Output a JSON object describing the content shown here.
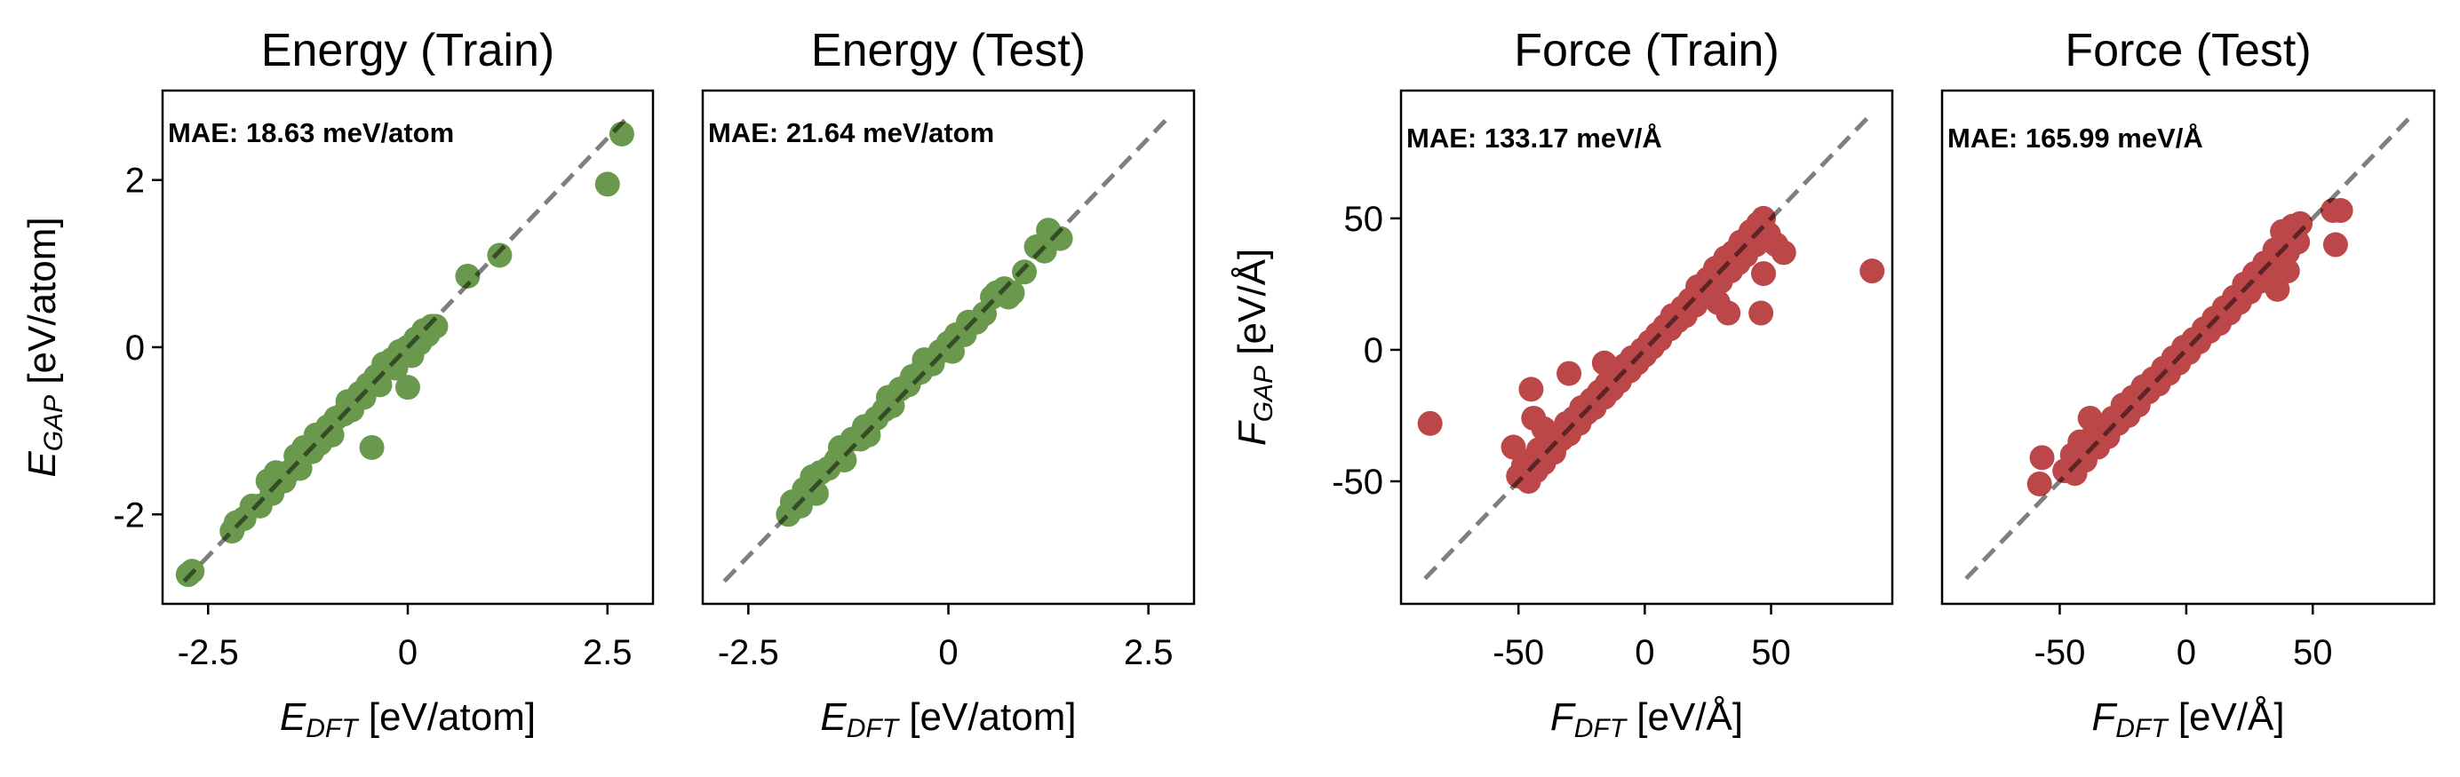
{
  "chart_data": [
    {
      "type": "scatter",
      "title": "Energy (Train)",
      "xlabel": {
        "symbol": "E",
        "sub": "DFT",
        "unit": " [eV/atom]"
      },
      "ylabel": {
        "symbol": "E",
        "sub": "GAP",
        "unit": " [eV/atom]"
      },
      "annotation": "MAE: 18.63 meV/atom",
      "xlim": [
        -3.07,
        3.07
      ],
      "ylim": [
        -3.07,
        3.07
      ],
      "xticks": [
        -2.5,
        0.0,
        2.5
      ],
      "xtick_labels": [
        "-2.5",
        "0.0",
        "2.5"
      ],
      "yticks": [
        -2,
        0,
        2
      ],
      "ytick_labels": [
        "-2",
        "0",
        "2"
      ],
      "show_yticks": true,
      "diagonal": [
        -2.8,
        2.75
      ],
      "color": "#6A994E",
      "grid": false,
      "points": [
        [
          -2.75,
          -2.72
        ],
        [
          -2.7,
          -2.68
        ],
        [
          -2.2,
          -2.2
        ],
        [
          -2.15,
          -2.1
        ],
        [
          -2.05,
          -2.05
        ],
        [
          -1.95,
          -1.9
        ],
        [
          -1.85,
          -1.9
        ],
        [
          -1.75,
          -1.6
        ],
        [
          -1.7,
          -1.75
        ],
        [
          -1.65,
          -1.5
        ],
        [
          -1.55,
          -1.6
        ],
        [
          -1.5,
          -1.5
        ],
        [
          -1.4,
          -1.3
        ],
        [
          -1.35,
          -1.45
        ],
        [
          -1.3,
          -1.2
        ],
        [
          -1.2,
          -1.25
        ],
        [
          -1.15,
          -1.05
        ],
        [
          -1.1,
          -1.15
        ],
        [
          -1.0,
          -0.95
        ],
        [
          -0.95,
          -1.05
        ],
        [
          -0.9,
          -0.85
        ],
        [
          -0.8,
          -0.8
        ],
        [
          -0.75,
          -0.65
        ],
        [
          -0.7,
          -0.75
        ],
        [
          -0.6,
          -0.55
        ],
        [
          -0.55,
          -0.6
        ],
        [
          -0.5,
          -0.45
        ],
        [
          -0.4,
          -0.35
        ],
        [
          -0.35,
          -0.45
        ],
        [
          -0.3,
          -0.2
        ],
        [
          -0.2,
          -0.15
        ],
        [
          -0.15,
          -0.25
        ],
        [
          -0.1,
          -0.05
        ],
        [
          0.0,
          0.0
        ],
        [
          0.05,
          -0.1
        ],
        [
          0.1,
          0.1
        ],
        [
          0.15,
          0.05
        ],
        [
          0.2,
          0.2
        ],
        [
          0.25,
          0.15
        ],
        [
          0.3,
          0.25
        ],
        [
          0.35,
          0.25
        ],
        [
          -0.45,
          -1.2
        ],
        [
          0.0,
          -0.48
        ],
        [
          0.75,
          0.85
        ],
        [
          1.15,
          1.1
        ],
        [
          2.5,
          1.95
        ],
        [
          2.68,
          2.55
        ]
      ]
    },
    {
      "type": "scatter",
      "title": "Energy (Test)",
      "xlabel": {
        "symbol": "E",
        "sub": "DFT",
        "unit": " [eV/atom]"
      },
      "annotation": "MAE: 21.64 meV/atom",
      "xlim": [
        -3.07,
        3.07
      ],
      "ylim": [
        -3.07,
        3.07
      ],
      "xticks": [
        -2.5,
        0.0,
        2.5
      ],
      "xtick_labels": [
        "-2.5",
        "0.0",
        "2.5"
      ],
      "show_yticks": false,
      "diagonal": [
        -2.8,
        2.75
      ],
      "color": "#6A994E",
      "grid": false,
      "points": [
        [
          -2.0,
          -2.0
        ],
        [
          -1.95,
          -1.85
        ],
        [
          -1.85,
          -1.9
        ],
        [
          -1.8,
          -1.7
        ],
        [
          -1.7,
          -1.55
        ],
        [
          -1.65,
          -1.75
        ],
        [
          -1.6,
          -1.5
        ],
        [
          -1.5,
          -1.45
        ],
        [
          -1.4,
          -1.35
        ],
        [
          -1.35,
          -1.2
        ],
        [
          -1.3,
          -1.35
        ],
        [
          -1.2,
          -1.1
        ],
        [
          -1.1,
          -1.1
        ],
        [
          -1.05,
          -0.95
        ],
        [
          -1.0,
          -1.05
        ],
        [
          -0.9,
          -0.85
        ],
        [
          -0.8,
          -0.75
        ],
        [
          -0.75,
          -0.6
        ],
        [
          -0.7,
          -0.7
        ],
        [
          -0.6,
          -0.5
        ],
        [
          -0.5,
          -0.45
        ],
        [
          -0.45,
          -0.35
        ],
        [
          -0.35,
          -0.3
        ],
        [
          -0.3,
          -0.15
        ],
        [
          -0.2,
          -0.2
        ],
        [
          -0.1,
          -0.05
        ],
        [
          0.0,
          0.05
        ],
        [
          0.05,
          -0.05
        ],
        [
          0.1,
          0.15
        ],
        [
          0.2,
          0.15
        ],
        [
          0.25,
          0.3
        ],
        [
          0.35,
          0.3
        ],
        [
          0.45,
          0.4
        ],
        [
          0.55,
          0.6
        ],
        [
          0.6,
          0.65
        ],
        [
          0.7,
          0.7
        ],
        [
          0.75,
          0.6
        ],
        [
          0.8,
          0.65
        ],
        [
          0.95,
          0.9
        ],
        [
          1.1,
          1.2
        ],
        [
          1.25,
          1.4
        ],
        [
          1.4,
          1.3
        ],
        [
          1.2,
          1.15
        ]
      ]
    },
    {
      "type": "scatter",
      "title": "Force (Train)",
      "xlabel": {
        "symbol": "F",
        "sub": "DFT",
        "unit": " [eV/Å]"
      },
      "ylabel": {
        "symbol": "F",
        "sub": "GAP",
        "unit": " [eV/Å]"
      },
      "annotation": "MAE: 133.17 meV/Å",
      "xlim": [
        -96.5,
        98
      ],
      "ylim": [
        -96.6,
        98.6
      ],
      "xticks": [
        -50,
        0,
        50
      ],
      "xtick_labels": [
        "-50",
        "0",
        "50"
      ],
      "yticks": [
        -50,
        0,
        50
      ],
      "ytick_labels": [
        "-50",
        "0",
        "50"
      ],
      "show_yticks": true,
      "diagonal": [
        -87,
        88
      ],
      "color": "#BC4749",
      "grid": false,
      "points": [
        [
          -50,
          -48
        ],
        [
          -48,
          -44
        ],
        [
          -46,
          -50
        ],
        [
          -45,
          -42
        ],
        [
          -43,
          -46
        ],
        [
          -42,
          -38
        ],
        [
          -40,
          -43
        ],
        [
          -38,
          -35
        ],
        [
          -36,
          -39
        ],
        [
          -35,
          -32
        ],
        [
          -33,
          -34
        ],
        [
          -31,
          -28
        ],
        [
          -30,
          -32
        ],
        [
          -28,
          -26
        ],
        [
          -26,
          -28
        ],
        [
          -25,
          -22
        ],
        [
          -23,
          -24
        ],
        [
          -21,
          -19
        ],
        [
          -20,
          -22
        ],
        [
          -18,
          -16
        ],
        [
          -16,
          -18
        ],
        [
          -15,
          -13
        ],
        [
          -13,
          -15
        ],
        [
          -11,
          -9
        ],
        [
          -10,
          -12
        ],
        [
          -8,
          -6
        ],
        [
          -6,
          -8
        ],
        [
          -5,
          -3
        ],
        [
          -3,
          -5
        ],
        [
          -1,
          0
        ],
        [
          0,
          -2
        ],
        [
          2,
          3
        ],
        [
          3,
          1
        ],
        [
          5,
          6
        ],
        [
          6,
          4
        ],
        [
          8,
          9
        ],
        [
          10,
          8
        ],
        [
          11,
          13
        ],
        [
          13,
          11
        ],
        [
          15,
          16
        ],
        [
          16,
          13
        ],
        [
          18,
          19
        ],
        [
          20,
          17
        ],
        [
          21,
          24
        ],
        [
          23,
          20
        ],
        [
          25,
          27
        ],
        [
          27,
          23
        ],
        [
          28,
          31
        ],
        [
          30,
          26
        ],
        [
          32,
          35
        ],
        [
          34,
          30
        ],
        [
          35,
          37
        ],
        [
          37,
          33
        ],
        [
          38,
          41
        ],
        [
          40,
          36
        ],
        [
          42,
          45
        ],
        [
          44,
          40
        ],
        [
          45,
          48
        ],
        [
          47,
          50
        ],
        [
          49,
          44
        ],
        [
          52,
          40
        ],
        [
          55,
          37
        ],
        [
          29,
          18
        ],
        [
          33,
          14
        ],
        [
          46,
          14
        ],
        [
          47,
          29
        ],
        [
          -52,
          -37
        ],
        [
          -45,
          -15
        ],
        [
          -44,
          -26
        ],
        [
          -30,
          -9
        ],
        [
          -16,
          -5
        ],
        [
          -40,
          -30
        ],
        [
          -85,
          -28
        ],
        [
          90,
          30
        ]
      ]
    },
    {
      "type": "scatter",
      "title": "Force (Test)",
      "xlabel": {
        "symbol": "F",
        "sub": "DFT",
        "unit": " [eV/Å]"
      },
      "annotation": "MAE: 165.99 meV/Å",
      "xlim": [
        -96.5,
        98
      ],
      "ylim": [
        -96.6,
        98.6
      ],
      "xticks": [
        -50,
        0,
        50
      ],
      "xtick_labels": [
        "-50",
        "0",
        "50"
      ],
      "show_yticks": false,
      "diagonal": [
        -87,
        88
      ],
      "color": "#BC4749",
      "grid": false,
      "points": [
        [
          -58,
          -51
        ],
        [
          -57,
          -41
        ],
        [
          -48,
          -46
        ],
        [
          -45,
          -40
        ],
        [
          -44,
          -47
        ],
        [
          -42,
          -35
        ],
        [
          -40,
          -42
        ],
        [
          -38,
          -26
        ],
        [
          -37,
          -33
        ],
        [
          -35,
          -37
        ],
        [
          -33,
          -30
        ],
        [
          -31,
          -33
        ],
        [
          -29,
          -26
        ],
        [
          -27,
          -28
        ],
        [
          -25,
          -21
        ],
        [
          -23,
          -25
        ],
        [
          -21,
          -18
        ],
        [
          -19,
          -21
        ],
        [
          -17,
          -14
        ],
        [
          -15,
          -16
        ],
        [
          -13,
          -11
        ],
        [
          -11,
          -13
        ],
        [
          -9,
          -7
        ],
        [
          -7,
          -9
        ],
        [
          -5,
          -3
        ],
        [
          -3,
          -5
        ],
        [
          -1,
          1
        ],
        [
          1,
          -1
        ],
        [
          3,
          4
        ],
        [
          5,
          3
        ],
        [
          7,
          8
        ],
        [
          9,
          7
        ],
        [
          11,
          12
        ],
        [
          13,
          10
        ],
        [
          15,
          16
        ],
        [
          17,
          14
        ],
        [
          19,
          20
        ],
        [
          21,
          18
        ],
        [
          23,
          25
        ],
        [
          25,
          22
        ],
        [
          27,
          29
        ],
        [
          29,
          26
        ],
        [
          31,
          33
        ],
        [
          33,
          30
        ],
        [
          35,
          38
        ],
        [
          37,
          33
        ],
        [
          38,
          45
        ],
        [
          40,
          37
        ],
        [
          42,
          47
        ],
        [
          44,
          41
        ],
        [
          45,
          48
        ],
        [
          36,
          23
        ],
        [
          58,
          53
        ],
        [
          61,
          53
        ],
        [
          59,
          40
        ],
        [
          40,
          30
        ]
      ]
    }
  ]
}
